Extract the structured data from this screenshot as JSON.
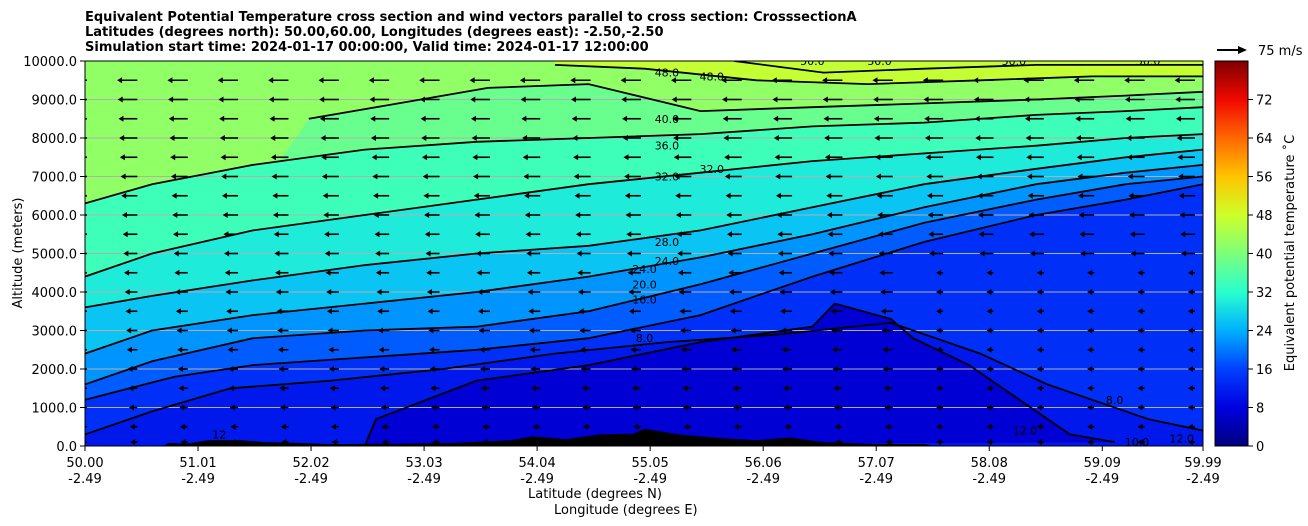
{
  "chart_data": {
    "type": "contour",
    "title_lines": [
      "Equivalent Potential Temperature cross section and wind vectors parallel to cross section: CrosssectionA",
      "Latitudes (degrees north): 50.00,60.00, Longitudes (degrees east): -2.50,-2.50",
      "Simulation start time: 2024-01-17 00:00:00, Valid time: 2024-01-17 12:00:00"
    ],
    "ylabel": "Altitude (meters)",
    "xlabel_lines": [
      "Latitude (degrees N)",
      "Longitude (degrees E)"
    ],
    "ylim": [
      0,
      10000
    ],
    "xlim": [
      50.0,
      59.99
    ],
    "y_ticks": [
      0,
      1000,
      2000,
      3000,
      4000,
      5000,
      6000,
      7000,
      8000,
      9000,
      10000
    ],
    "y_tick_labels": [
      "0.0",
      "1000.0",
      "2000.0",
      "3000.0",
      "4000.0",
      "5000.0",
      "6000.0",
      "7000.0",
      "8000.0",
      "9000.0",
      "10000.0"
    ],
    "x_ticks": [
      {
        "lat": "50.00",
        "lon": "-2.49"
      },
      {
        "lat": "51.01",
        "lon": "-2.49"
      },
      {
        "lat": "52.02",
        "lon": "-2.49"
      },
      {
        "lat": "53.03",
        "lon": "-2.49"
      },
      {
        "lat": "54.04",
        "lon": "-2.49"
      },
      {
        "lat": "55.05",
        "lon": "-2.49"
      },
      {
        "lat": "56.06",
        "lon": "-2.49"
      },
      {
        "lat": "57.07",
        "lon": "-2.49"
      },
      {
        "lat": "58.08",
        "lon": "-2.49"
      },
      {
        "lat": "59.09",
        "lon": "-2.49"
      },
      {
        "lat": "59.99",
        "lon": "-2.49"
      }
    ],
    "grid": "horizontal",
    "colorbar": {
      "label": "Equivalent potential temperature ˚C",
      "range": [
        0,
        80
      ],
      "ticks": [
        0,
        8,
        16,
        24,
        32,
        40,
        48,
        56,
        64,
        72
      ],
      "tick_labels": [
        "0",
        "8",
        "16",
        "24",
        "32",
        "40",
        "48",
        "56",
        "64",
        "72"
      ]
    },
    "vector_key": {
      "label": "75 m/s",
      "value": 75
    },
    "contour_labels": [
      {
        "text": "48.0",
        "lat": 55.2,
        "alt": 9700
      },
      {
        "text": "48.0",
        "lat": 55.6,
        "alt": 9600
      },
      {
        "text": "40.0",
        "lat": 55.2,
        "alt": 8500
      },
      {
        "text": "36.0",
        "lat": 55.2,
        "alt": 7800
      },
      {
        "text": "32.0",
        "lat": 55.2,
        "alt": 7000
      },
      {
        "text": "32.0",
        "lat": 55.6,
        "alt": 7200
      },
      {
        "text": "28.0",
        "lat": 55.2,
        "alt": 5300
      },
      {
        "text": "24.0",
        "lat": 55.0,
        "alt": 4600
      },
      {
        "text": "24.0",
        "lat": 55.2,
        "alt": 4800
      },
      {
        "text": "20.0",
        "lat": 55.0,
        "alt": 4200
      },
      {
        "text": "16.0",
        "lat": 55.0,
        "alt": 3800
      },
      {
        "text": "8.0",
        "lat": 55.0,
        "alt": 2800
      },
      {
        "text": "50.0",
        "lat": 56.5,
        "alt": 10000
      },
      {
        "text": "50.0",
        "lat": 57.1,
        "alt": 10000
      },
      {
        "text": "50.0",
        "lat": 58.3,
        "alt": 10000
      },
      {
        "text": "50.0",
        "lat": 59.5,
        "alt": 10000
      },
      {
        "text": "12",
        "lat": 51.2,
        "alt": 300
      },
      {
        "text": "12.0",
        "lat": 58.4,
        "alt": 400
      },
      {
        "text": "8.0",
        "lat": 59.2,
        "alt": 1200
      },
      {
        "text": "10.0",
        "lat": 59.4,
        "alt": 100
      },
      {
        "text": "12.0",
        "lat": 59.8,
        "alt": 200
      }
    ],
    "contour_lines": [
      {
        "level": 16,
        "points": [
          [
            50,
            1200
          ],
          [
            50.8,
            1800
          ],
          [
            51.5,
            2100
          ],
          [
            52.5,
            2300
          ],
          [
            53.5,
            2500
          ],
          [
            54.5,
            2800
          ],
          [
            55.5,
            3400
          ],
          [
            56.5,
            4400
          ],
          [
            57.5,
            5300
          ],
          [
            58.5,
            6000
          ],
          [
            59.3,
            6400
          ],
          [
            59.99,
            6800
          ]
        ]
      },
      {
        "level": 20,
        "points": [
          [
            50,
            1600
          ],
          [
            50.6,
            2200
          ],
          [
            51.5,
            2800
          ],
          [
            52.5,
            3000
          ],
          [
            53.5,
            3100
          ],
          [
            54.5,
            3500
          ],
          [
            55.5,
            4200
          ],
          [
            56.5,
            5000
          ],
          [
            57.5,
            5800
          ],
          [
            58.5,
            6400
          ],
          [
            59.3,
            6800
          ],
          [
            59.99,
            7000
          ]
        ]
      },
      {
        "level": 24,
        "points": [
          [
            50,
            2400
          ],
          [
            50.6,
            3000
          ],
          [
            51.5,
            3400
          ],
          [
            52.5,
            3700
          ],
          [
            53.5,
            4000
          ],
          [
            54.5,
            4400
          ],
          [
            55.5,
            4900
          ],
          [
            56.5,
            5500
          ],
          [
            57.5,
            6200
          ],
          [
            58.5,
            6800
          ],
          [
            59.3,
            7100
          ],
          [
            59.99,
            7300
          ]
        ]
      },
      {
        "level": 28,
        "points": [
          [
            50,
            3600
          ],
          [
            50.6,
            3900
          ],
          [
            51.5,
            4300
          ],
          [
            52.5,
            4700
          ],
          [
            53.5,
            5000
          ],
          [
            54.5,
            5200
          ],
          [
            55.5,
            5600
          ],
          [
            56.5,
            6200
          ],
          [
            57.5,
            6800
          ],
          [
            58.5,
            7200
          ],
          [
            59.3,
            7500
          ],
          [
            59.99,
            7700
          ]
        ]
      },
      {
        "level": 32,
        "points": [
          [
            50,
            4400
          ],
          [
            50.6,
            5000
          ],
          [
            51.5,
            5600
          ],
          [
            52.5,
            6000
          ],
          [
            53.5,
            6400
          ],
          [
            54.5,
            6800
          ],
          [
            55.5,
            7100
          ],
          [
            56.5,
            7400
          ],
          [
            57.5,
            7600
          ],
          [
            58.5,
            7800
          ],
          [
            59.3,
            8000
          ],
          [
            59.99,
            8100
          ]
        ]
      },
      {
        "level": 36,
        "points": [
          [
            50,
            6300
          ],
          [
            50.6,
            6800
          ],
          [
            51.5,
            7300
          ],
          [
            52.5,
            7700
          ],
          [
            53.5,
            7900
          ],
          [
            54.5,
            8000
          ],
          [
            55.5,
            8100
          ],
          [
            56.5,
            8300
          ],
          [
            57.5,
            8400
          ],
          [
            58.5,
            8600
          ],
          [
            59.3,
            8700
          ],
          [
            59.99,
            8800
          ]
        ]
      },
      {
        "level": 40,
        "points": [
          [
            52,
            8500
          ],
          [
            52.8,
            8900
          ],
          [
            53.6,
            9300
          ],
          [
            54.5,
            9400
          ],
          [
            55.5,
            8700
          ],
          [
            56.5,
            8800
          ],
          [
            57.5,
            8900
          ],
          [
            58.5,
            9000
          ],
          [
            59.3,
            9100
          ],
          [
            59.99,
            9200
          ]
        ]
      },
      {
        "level": 44,
        "points": [
          [
            54.2,
            9900
          ],
          [
            55,
            9800
          ],
          [
            56,
            9500
          ],
          [
            57,
            9400
          ],
          [
            58,
            9500
          ],
          [
            59,
            9600
          ],
          [
            59.99,
            9600
          ]
        ]
      },
      {
        "level": 48,
        "points": [
          [
            55.8,
            10000
          ],
          [
            56.6,
            9700
          ],
          [
            57.5,
            9800
          ],
          [
            58.5,
            9900
          ],
          [
            59.3,
            9900
          ],
          [
            59.99,
            9900
          ]
        ]
      },
      {
        "level": 8,
        "points": [
          [
            52.5,
            0
          ],
          [
            52.6,
            700
          ],
          [
            53.5,
            1700
          ],
          [
            54.5,
            2100
          ],
          [
            55.5,
            2700
          ],
          [
            56.5,
            3100
          ],
          [
            56.7,
            3700
          ],
          [
            57.2,
            3300
          ],
          [
            57.4,
            2800
          ],
          [
            57.9,
            2100
          ],
          [
            58.2,
            1500
          ],
          [
            58.5,
            900
          ],
          [
            58.8,
            300
          ],
          [
            59.2,
            100
          ]
        ]
      },
      {
        "level": 12,
        "points": [
          [
            50,
            300
          ],
          [
            50.6,
            900
          ],
          [
            51.3,
            1500
          ],
          [
            52.2,
            1700
          ],
          [
            53.2,
            2000
          ],
          [
            54.2,
            2400
          ],
          [
            55.2,
            2700
          ],
          [
            56.2,
            2900
          ],
          [
            57.2,
            3200
          ],
          [
            58.0,
            2400
          ],
          [
            58.6,
            1600
          ],
          [
            59.0,
            1200
          ],
          [
            59.5,
            700
          ],
          [
            59.99,
            400
          ]
        ]
      }
    ],
    "wind_vector_rows_alt": [
      9500,
      9000,
      8500,
      8000,
      7500,
      7000,
      6500,
      6000,
      5500,
      5000,
      4500,
      4000,
      3500,
      3000,
      2500,
      2000,
      1500,
      1000,
      500,
      100
    ],
    "wind_vector_cols_lat": [
      50.0,
      50.45,
      50.9,
      51.35,
      51.8,
      52.25,
      52.7,
      53.15,
      53.6,
      54.05,
      54.5,
      54.95,
      55.4,
      55.85,
      56.3,
      56.75,
      57.2,
      57.65,
      58.1,
      58.55,
      59.0,
      59.45,
      59.9
    ],
    "terrain_profile": [
      [
        50.7,
        0
      ],
      [
        50.75,
        80
      ],
      [
        50.9,
        60
      ],
      [
        51.1,
        150
      ],
      [
        51.4,
        150
      ],
      [
        51.6,
        100
      ],
      [
        51.9,
        80
      ],
      [
        52.2,
        50
      ],
      [
        52.8,
        60
      ],
      [
        53.3,
        80
      ],
      [
        53.8,
        150
      ],
      [
        54.0,
        250
      ],
      [
        54.3,
        180
      ],
      [
        54.6,
        300
      ],
      [
        54.9,
        320
      ],
      [
        55.0,
        450
      ],
      [
        55.3,
        300
      ],
      [
        55.7,
        200
      ],
      [
        56.0,
        150
      ],
      [
        56.3,
        220
      ],
      [
        56.6,
        100
      ],
      [
        57.0,
        60
      ],
      [
        57.5,
        50
      ],
      [
        57.6,
        0
      ]
    ]
  }
}
